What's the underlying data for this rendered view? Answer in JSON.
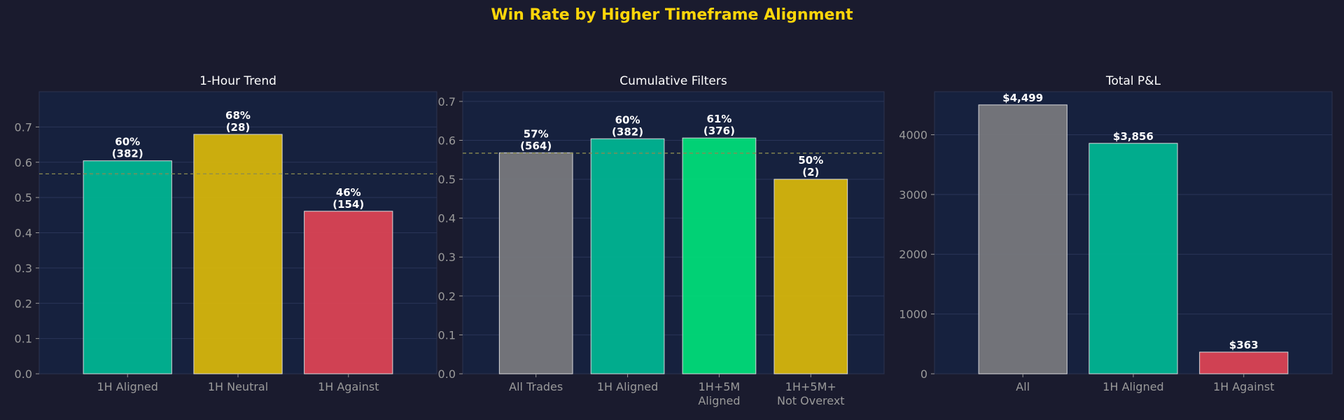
{
  "figure": {
    "title": "Win Rate by Higher Timeframe Alignment",
    "colors": {
      "background": "#1a1b2e",
      "panel": "#16213e",
      "title": "#ffd60a",
      "subtitle": "#ffffff",
      "tick": "#9a9a9a",
      "grid": "#2a3558",
      "value_label": "#ffffff",
      "reference_line": "#8a8a50"
    }
  },
  "chart_data": [
    {
      "type": "bar",
      "title": "1-Hour Trend",
      "categories": [
        "1H Aligned",
        "1H Neutral",
        "1H Against"
      ],
      "values": [
        0.604,
        0.679,
        0.461
      ],
      "bar_labels": [
        "60%\n(382)",
        "68%\n(28)",
        "46%\n(154)"
      ],
      "colors": [
        "#00b894",
        "#dbb90a",
        "#e04455"
      ],
      "ylim": [
        0,
        0.8
      ],
      "yticks": [
        "0.0",
        "0.1",
        "0.2",
        "0.3",
        "0.4",
        "0.5",
        "0.6",
        "0.7"
      ],
      "reference_line": 0.567,
      "grid": true
    },
    {
      "type": "bar",
      "title": "Cumulative Filters",
      "categories": [
        "All Trades",
        "1H Aligned",
        "1H+5M\nAligned",
        "1H+5M+\nNot Overext"
      ],
      "values": [
        0.568,
        0.604,
        0.606,
        0.5
      ],
      "bar_labels": [
        "57%\n(564)",
        "60%\n(382)",
        "61%\n(376)",
        "50%\n(2)"
      ],
      "colors": [
        "#7a7a7e",
        "#00b894",
        "#00e07a",
        "#dbb90a"
      ],
      "ylim": [
        0,
        0.725
      ],
      "yticks": [
        "0.0",
        "0.1",
        "0.2",
        "0.3",
        "0.4",
        "0.5",
        "0.6",
        "0.7"
      ],
      "reference_line": 0.567,
      "grid": true
    },
    {
      "type": "bar",
      "title": "Total P&L",
      "categories": [
        "All",
        "1H Aligned",
        "1H Against"
      ],
      "values": [
        4499,
        3856,
        363
      ],
      "bar_labels": [
        "$4,499",
        "$3,856",
        "$363"
      ],
      "colors": [
        "#7a7a7e",
        "#00b894",
        "#e04455"
      ],
      "ylim": [
        0,
        4720
      ],
      "yticks": [
        "0",
        "1000",
        "2000",
        "3000",
        "4000"
      ],
      "reference_line": null,
      "grid": true
    }
  ]
}
